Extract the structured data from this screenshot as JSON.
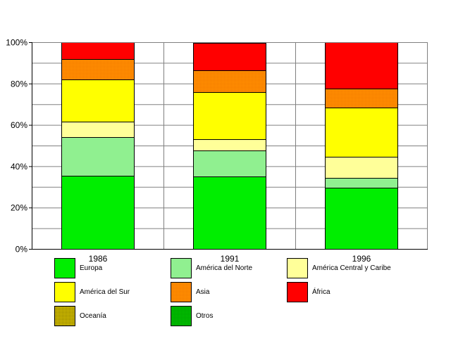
{
  "chart_data": {
    "type": "bar",
    "stacked": true,
    "percent": true,
    "categories": [
      "1986",
      "1991",
      "1996"
    ],
    "y_ticks": [
      "0%",
      "20%",
      "40%",
      "60%",
      "80%",
      "100%"
    ],
    "ylim": [
      0,
      100
    ],
    "grid": true,
    "legend_position": "bottom",
    "series": [
      {
        "name": "Europa",
        "color": "#00ee00",
        "values": [
          35.5,
          35,
          29.5
        ]
      },
      {
        "name": "América del Norte",
        "color": "#90f090",
        "values": [
          18.5,
          12.5,
          5
        ]
      },
      {
        "name": "América Central y Caribe",
        "color": "#ffff99",
        "values": [
          7.5,
          5.5,
          10
        ]
      },
      {
        "name": "América del Sur",
        "color": "#ffff00",
        "values": [
          20.5,
          23,
          24
        ]
      },
      {
        "name": "Asia",
        "color": "#ff8c00",
        "values": [
          10,
          10.5,
          9
        ]
      },
      {
        "name": "África",
        "color": "#ff0000",
        "values": [
          8,
          13,
          22.5
        ]
      },
      {
        "name": "Oceanía",
        "color": "#c8b400",
        "values": [
          0,
          0.5,
          0
        ]
      },
      {
        "name": "Otros",
        "color": "#00aa00",
        "values": [
          0,
          0,
          0
        ]
      }
    ]
  }
}
